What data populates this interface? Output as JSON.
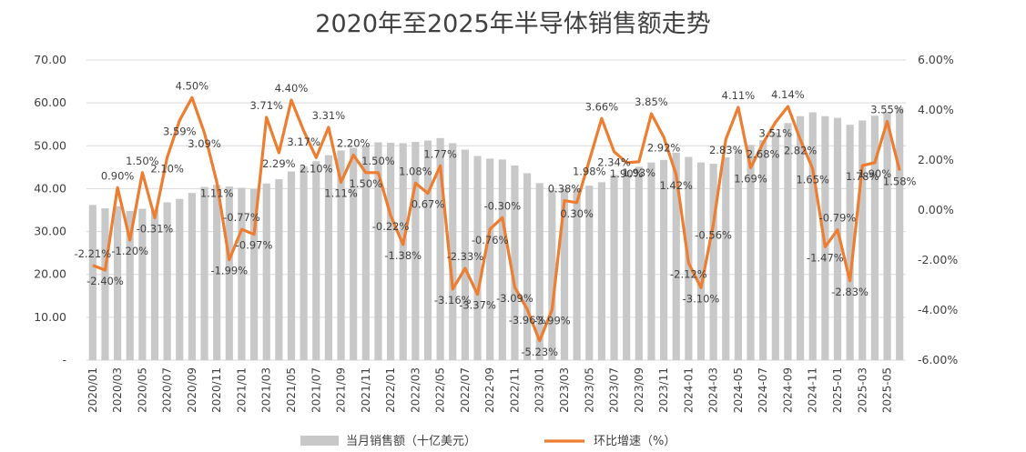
{
  "chart_data": {
    "type": "bar",
    "title": "2020年至2025年半导体销售额走势",
    "x_tick_labels": [
      "2020/01",
      "2020/03",
      "2020/05",
      "2020/07",
      "2020/09",
      "2020/11",
      "2021/01",
      "2021/03",
      "2021/05",
      "2021/07",
      "2021/09",
      "2021/11",
      "2022/01",
      "2022/03",
      "2022/05",
      "2022/07",
      "2022-09",
      "2022/11",
      "2023/01",
      "2023/03",
      "2023/05",
      "2023/07",
      "2023/09",
      "2023/11",
      "2024-01",
      "2024-03",
      "2024-05",
      "2024-07",
      "2024-09",
      "2024-11",
      "2025-01",
      "2025-03",
      "2025-05"
    ],
    "categories": [
      "2020/01",
      "2020/02",
      "2020/03",
      "2020/04",
      "2020/05",
      "2020/06",
      "2020/07",
      "2020/08",
      "2020/09",
      "2020/10",
      "2020/11",
      "2020/12",
      "2021/01",
      "2021/02",
      "2021/03",
      "2021/04",
      "2021/05",
      "2021/06",
      "2021/07",
      "2021/08",
      "2021/09",
      "2021/10",
      "2021/11",
      "2021/12",
      "2022/01",
      "2022/02",
      "2022/03",
      "2022/04",
      "2022/05",
      "2022/06",
      "2022/07",
      "2022/08",
      "2022-09",
      "2022/10",
      "2022/11",
      "2022/12",
      "2023/01",
      "2023/02",
      "2023/03",
      "2023/04",
      "2023/05",
      "2023/06",
      "2023/07",
      "2023/08",
      "2023/09",
      "2023/10",
      "2023/11",
      "2023/12",
      "2024-01",
      "2024-02",
      "2024-03",
      "2024-04",
      "2024-05",
      "2024-06",
      "2024-07",
      "2024-08",
      "2024-09",
      "2024-10",
      "2024-11",
      "2024-12",
      "2025-01",
      "2025-02",
      "2025-03",
      "2025-04",
      "2025-05",
      "2025-06"
    ],
    "left_axis": {
      "ylim": [
        0,
        70
      ],
      "ticks": [
        "-",
        "10.00",
        "20.00",
        "30.00",
        "40.00",
        "50.00",
        "60.00",
        "70.00"
      ]
    },
    "right_axis": {
      "ylim": [
        -6,
        6
      ],
      "ticks": [
        "-6.00%",
        "-4.00%",
        "-2.00%",
        "0.00%",
        "2.00%",
        "4.00%",
        "6.00%"
      ]
    },
    "series": [
      {
        "name": "当月销售额（十亿美元）",
        "type": "bar",
        "axis": "left",
        "color": "#c8c8c8",
        "values": [
          36.2,
          35.4,
          35.9,
          34.8,
          35.3,
          35.1,
          36.8,
          37.6,
          39.0,
          40.4,
          40.9,
          40.5,
          40.2,
          39.9,
          41.2,
          42.2,
          44.0,
          45.2,
          46.4,
          47.8,
          48.9,
          49.5,
          50.0,
          50.8,
          50.7,
          50.6,
          50.9,
          51.2,
          51.8,
          50.6,
          49.1,
          47.6,
          47.0,
          46.8,
          45.4,
          43.6,
          41.3,
          39.7,
          39.9,
          40.0,
          40.7,
          41.5,
          43.2,
          44.2,
          45.1,
          46.1,
          46.7,
          48.4,
          47.4,
          46.1,
          45.8,
          47.3,
          49.1,
          50.2,
          51.3,
          53.1,
          55.3,
          56.9,
          57.8,
          56.9,
          56.5,
          54.9,
          55.9,
          57.0,
          57.9,
          59.0
        ]
      },
      {
        "name": "环比增速（%）",
        "type": "line",
        "axis": "right",
        "color": "#ed7d31",
        "values": [
          -2.21,
          -2.4,
          0.9,
          -1.2,
          1.5,
          -0.31,
          2.1,
          3.59,
          4.5,
          3.09,
          1.11,
          -1.99,
          -0.77,
          -0.97,
          3.71,
          2.29,
          4.4,
          3.17,
          2.1,
          3.31,
          1.11,
          2.2,
          1.5,
          1.5,
          -0.22,
          -1.38,
          1.08,
          0.67,
          1.77,
          -3.16,
          -2.33,
          -3.37,
          -0.76,
          -0.3,
          -3.09,
          -3.96,
          -5.23,
          -3.99,
          0.38,
          0.3,
          1.98,
          3.66,
          2.34,
          1.9,
          1.93,
          3.85,
          2.92,
          1.42,
          -2.12,
          -3.1,
          -0.56,
          2.83,
          4.11,
          1.69,
          2.68,
          3.51,
          4.14,
          2.82,
          1.65,
          -1.47,
          -0.79,
          -2.83,
          1.78,
          1.9,
          3.55,
          1.58
        ],
        "labels": [
          "-2.21%",
          "-2.40%",
          "0.90%",
          "-1.20%",
          "1.50%",
          "-0.31%",
          "2.10%",
          "3.59%",
          "4.50%",
          "3.09%",
          "1.11%",
          "-1.99%",
          "-0.77%",
          "-0.97%",
          "3.71%",
          "2.29%",
          "4.40%",
          "3.17%",
          "2.10%",
          "3.31%",
          "1.11%",
          "2.20%",
          "1.50%",
          "1.50%",
          "-0.22%",
          "-1.38%",
          "1.08%",
          "0.67%",
          "1.77%",
          "-3.16%",
          "-2.33%",
          "-3.37%",
          "-0.76%",
          "-0.30%",
          "-3.09%",
          "-3.96%",
          "-5.23%",
          "-3.99%",
          "0.38%",
          "0.30%",
          "1.98%",
          "3.66%",
          "2.34%",
          "1.90%",
          "1.93%",
          "3.85%",
          "2.92%",
          "1.42%",
          "-2.12%",
          "-3.10%",
          "-0.56%",
          "2.83%",
          "4.11%",
          "1.69%",
          "2.68%",
          "3.51%",
          "4.14%",
          "2.82%",
          "1.65%",
          "-1.47%",
          "-0.79%",
          "-2.83%",
          "1.78%",
          "1.90%",
          "3.55%",
          "1.58%"
        ]
      }
    ],
    "legend": {
      "placement": "bottom"
    },
    "grid": true
  }
}
